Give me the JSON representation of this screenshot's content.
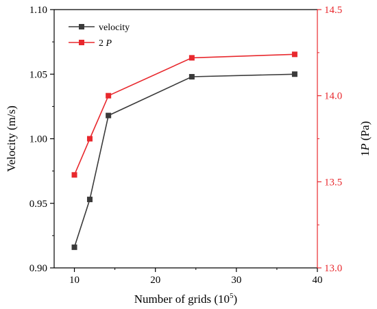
{
  "chart_data": {
    "type": "line",
    "x_axis": {
      "label": "Number of grids (10",
      "label_superscript": "5",
      "label_suffix": ")",
      "range": [
        7.5,
        40
      ],
      "ticks": [
        10,
        20,
        30,
        40
      ],
      "tick_labels": [
        "10",
        "20",
        "30",
        "40"
      ]
    },
    "y_left": {
      "label": "Velocity (m/s)",
      "range": [
        0.9,
        1.1
      ],
      "ticks": [
        0.9,
        0.95,
        1.0,
        1.05,
        1.1
      ],
      "tick_labels": [
        "0.90",
        "0.95",
        "1.00",
        "1.05",
        "1.10"
      ],
      "color": "#000000"
    },
    "y_right": {
      "label_prefix": "1",
      "label_var": "P",
      "label_suffix": " (Pa)",
      "range": [
        13.0,
        14.5
      ],
      "ticks": [
        13.0,
        13.5,
        14.0,
        14.5
      ],
      "tick_labels": [
        "13.0",
        "13.5",
        "14.0",
        "14.5"
      ],
      "color": "#e8282d"
    },
    "series": [
      {
        "name": "velocity",
        "axis": "left",
        "color": "#3a3a3a",
        "x": [
          10.0,
          11.9,
          14.2,
          24.5,
          37.2
        ],
        "y": [
          0.916,
          0.953,
          1.018,
          1.048,
          1.05
        ]
      },
      {
        "name_prefix": "2",
        "name_var": "P",
        "axis": "right",
        "color": "#e8282d",
        "x": [
          10.0,
          11.9,
          14.2,
          24.5,
          37.2
        ],
        "y": [
          13.54,
          13.75,
          14.0,
          14.22,
          14.24
        ]
      }
    ],
    "legend_position": "top-left",
    "grid": false
  }
}
